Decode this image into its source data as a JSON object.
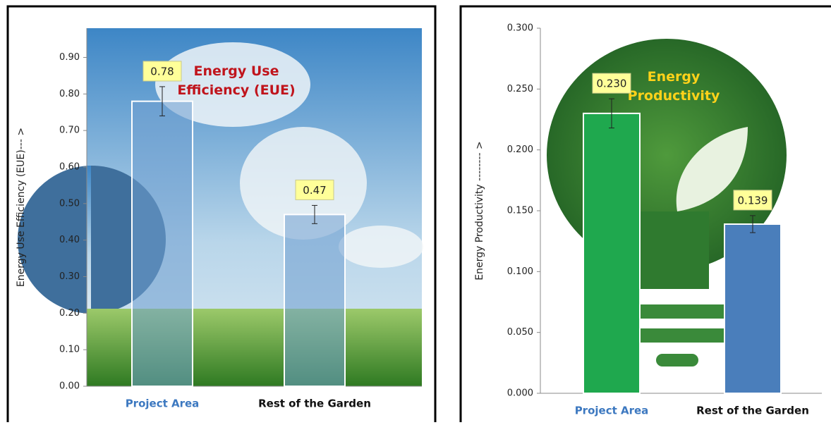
{
  "chart_data": [
    {
      "type": "bar",
      "title": "Energy Use Efficiency (EUE)",
      "y_label": "Energy Use Efficiency (EUE)--- >",
      "categories": [
        "Project Area",
        "Rest of the Garden"
      ],
      "values": [
        0.78,
        0.47
      ],
      "errors": [
        0.04,
        0.025
      ],
      "color": "#6f9fd0",
      "ylim": [
        0,
        0.98
      ],
      "yticks": [
        {
          "value": 0,
          "label": "0.00"
        },
        {
          "value": 0.1,
          "label": "0.10"
        },
        {
          "value": 0.2,
          "label": "0.20"
        },
        {
          "value": 0.3,
          "label": "0.30"
        },
        {
          "value": 0.4,
          "label": "0.40"
        },
        {
          "value": 0.5,
          "label": "0.50"
        },
        {
          "value": 0.6,
          "label": "0.60"
        },
        {
          "value": 0.7,
          "label": "0.70"
        },
        {
          "value": 0.8,
          "label": "0.80"
        },
        {
          "value": 0.9,
          "label": "0.90"
        }
      ]
    },
    {
      "type": "bar",
      "title": "Energy Productivity",
      "y_label": "Energy Productivity -------- >",
      "categories": [
        "Project Area",
        "Rest of the Garden"
      ],
      "values": [
        0.23,
        0.139
      ],
      "value_labels": [
        "0.230",
        "0.139"
      ],
      "errors": [
        0.012,
        0.007
      ],
      "colors": [
        "#1fa84e",
        "#4a7ebb"
      ],
      "ylim": [
        0,
        0.3
      ],
      "yticks": [
        {
          "value": 0,
          "label": "0.000"
        },
        {
          "value": 0.05,
          "label": "0.050"
        },
        {
          "value": 0.1,
          "label": "0.100"
        },
        {
          "value": 0.15,
          "label": "0.150"
        },
        {
          "value": 0.2,
          "label": "0.200"
        },
        {
          "value": 0.25,
          "label": "0.250"
        },
        {
          "value": 0.3,
          "label": "0.300"
        }
      ]
    }
  ]
}
